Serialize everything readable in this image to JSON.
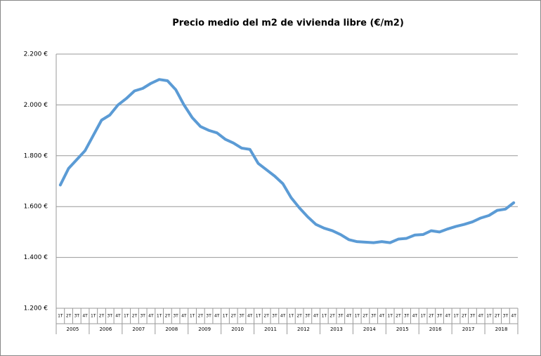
{
  "chart_data": {
    "type": "line",
    "title": "Precio medio del m2 de vivienda libre (€/m2)",
    "categories": [
      "1T",
      "2T",
      "3T",
      "4T",
      "1T",
      "2T",
      "3T",
      "4T",
      "1T",
      "2T",
      "3T",
      "4T",
      "1T",
      "2T",
      "3T",
      "4T",
      "1T",
      "2T",
      "3T",
      "4T",
      "1T",
      "2T",
      "3T",
      "4T",
      "1T",
      "2T",
      "3T",
      "4T",
      "1T",
      "2T",
      "3T",
      "4T",
      "1T",
      "2T",
      "3T",
      "4T",
      "1T",
      "2T",
      "3T",
      "4T",
      "1T",
      "2T",
      "3T",
      "4T",
      "1T",
      "2T",
      "3T",
      "4T",
      "1T",
      "2T",
      "3T",
      "4T",
      "1T",
      "2T",
      "3T",
      "4T"
    ],
    "years": [
      "2005",
      "2006",
      "2007",
      "2008",
      "2009",
      "2010",
      "2011",
      "2012",
      "2013",
      "2014",
      "2015",
      "2016",
      "2017",
      "2018"
    ],
    "series": [
      {
        "color": "#5b9bd5",
        "values": [
          1685,
          1750,
          1785,
          1820,
          1880,
          1940,
          1960,
          2000,
          2025,
          2055,
          2065,
          2085,
          2100,
          2095,
          2060,
          2000,
          1950,
          1915,
          1900,
          1890,
          1865,
          1850,
          1830,
          1825,
          1770,
          1745,
          1720,
          1690,
          1635,
          1595,
          1560,
          1530,
          1515,
          1505,
          1490,
          1470,
          1462,
          1460,
          1458,
          1462,
          1458,
          1472,
          1475,
          1488,
          1490,
          1505,
          1500,
          1512,
          1522,
          1530,
          1540,
          1555,
          1565,
          1585,
          1590,
          1615
        ]
      }
    ],
    "ylim": [
      1200,
      2200
    ],
    "yticks": [
      {
        "value": 1200,
        "label": "1.200 €"
      },
      {
        "value": 1400,
        "label": "1.400 €"
      },
      {
        "value": 1600,
        "label": "1.600 €"
      },
      {
        "value": 1800,
        "label": "1.800 €"
      },
      {
        "value": 2000,
        "label": "2.000 €"
      },
      {
        "value": 2200,
        "label": "2.200 €"
      }
    ],
    "grid": true
  }
}
